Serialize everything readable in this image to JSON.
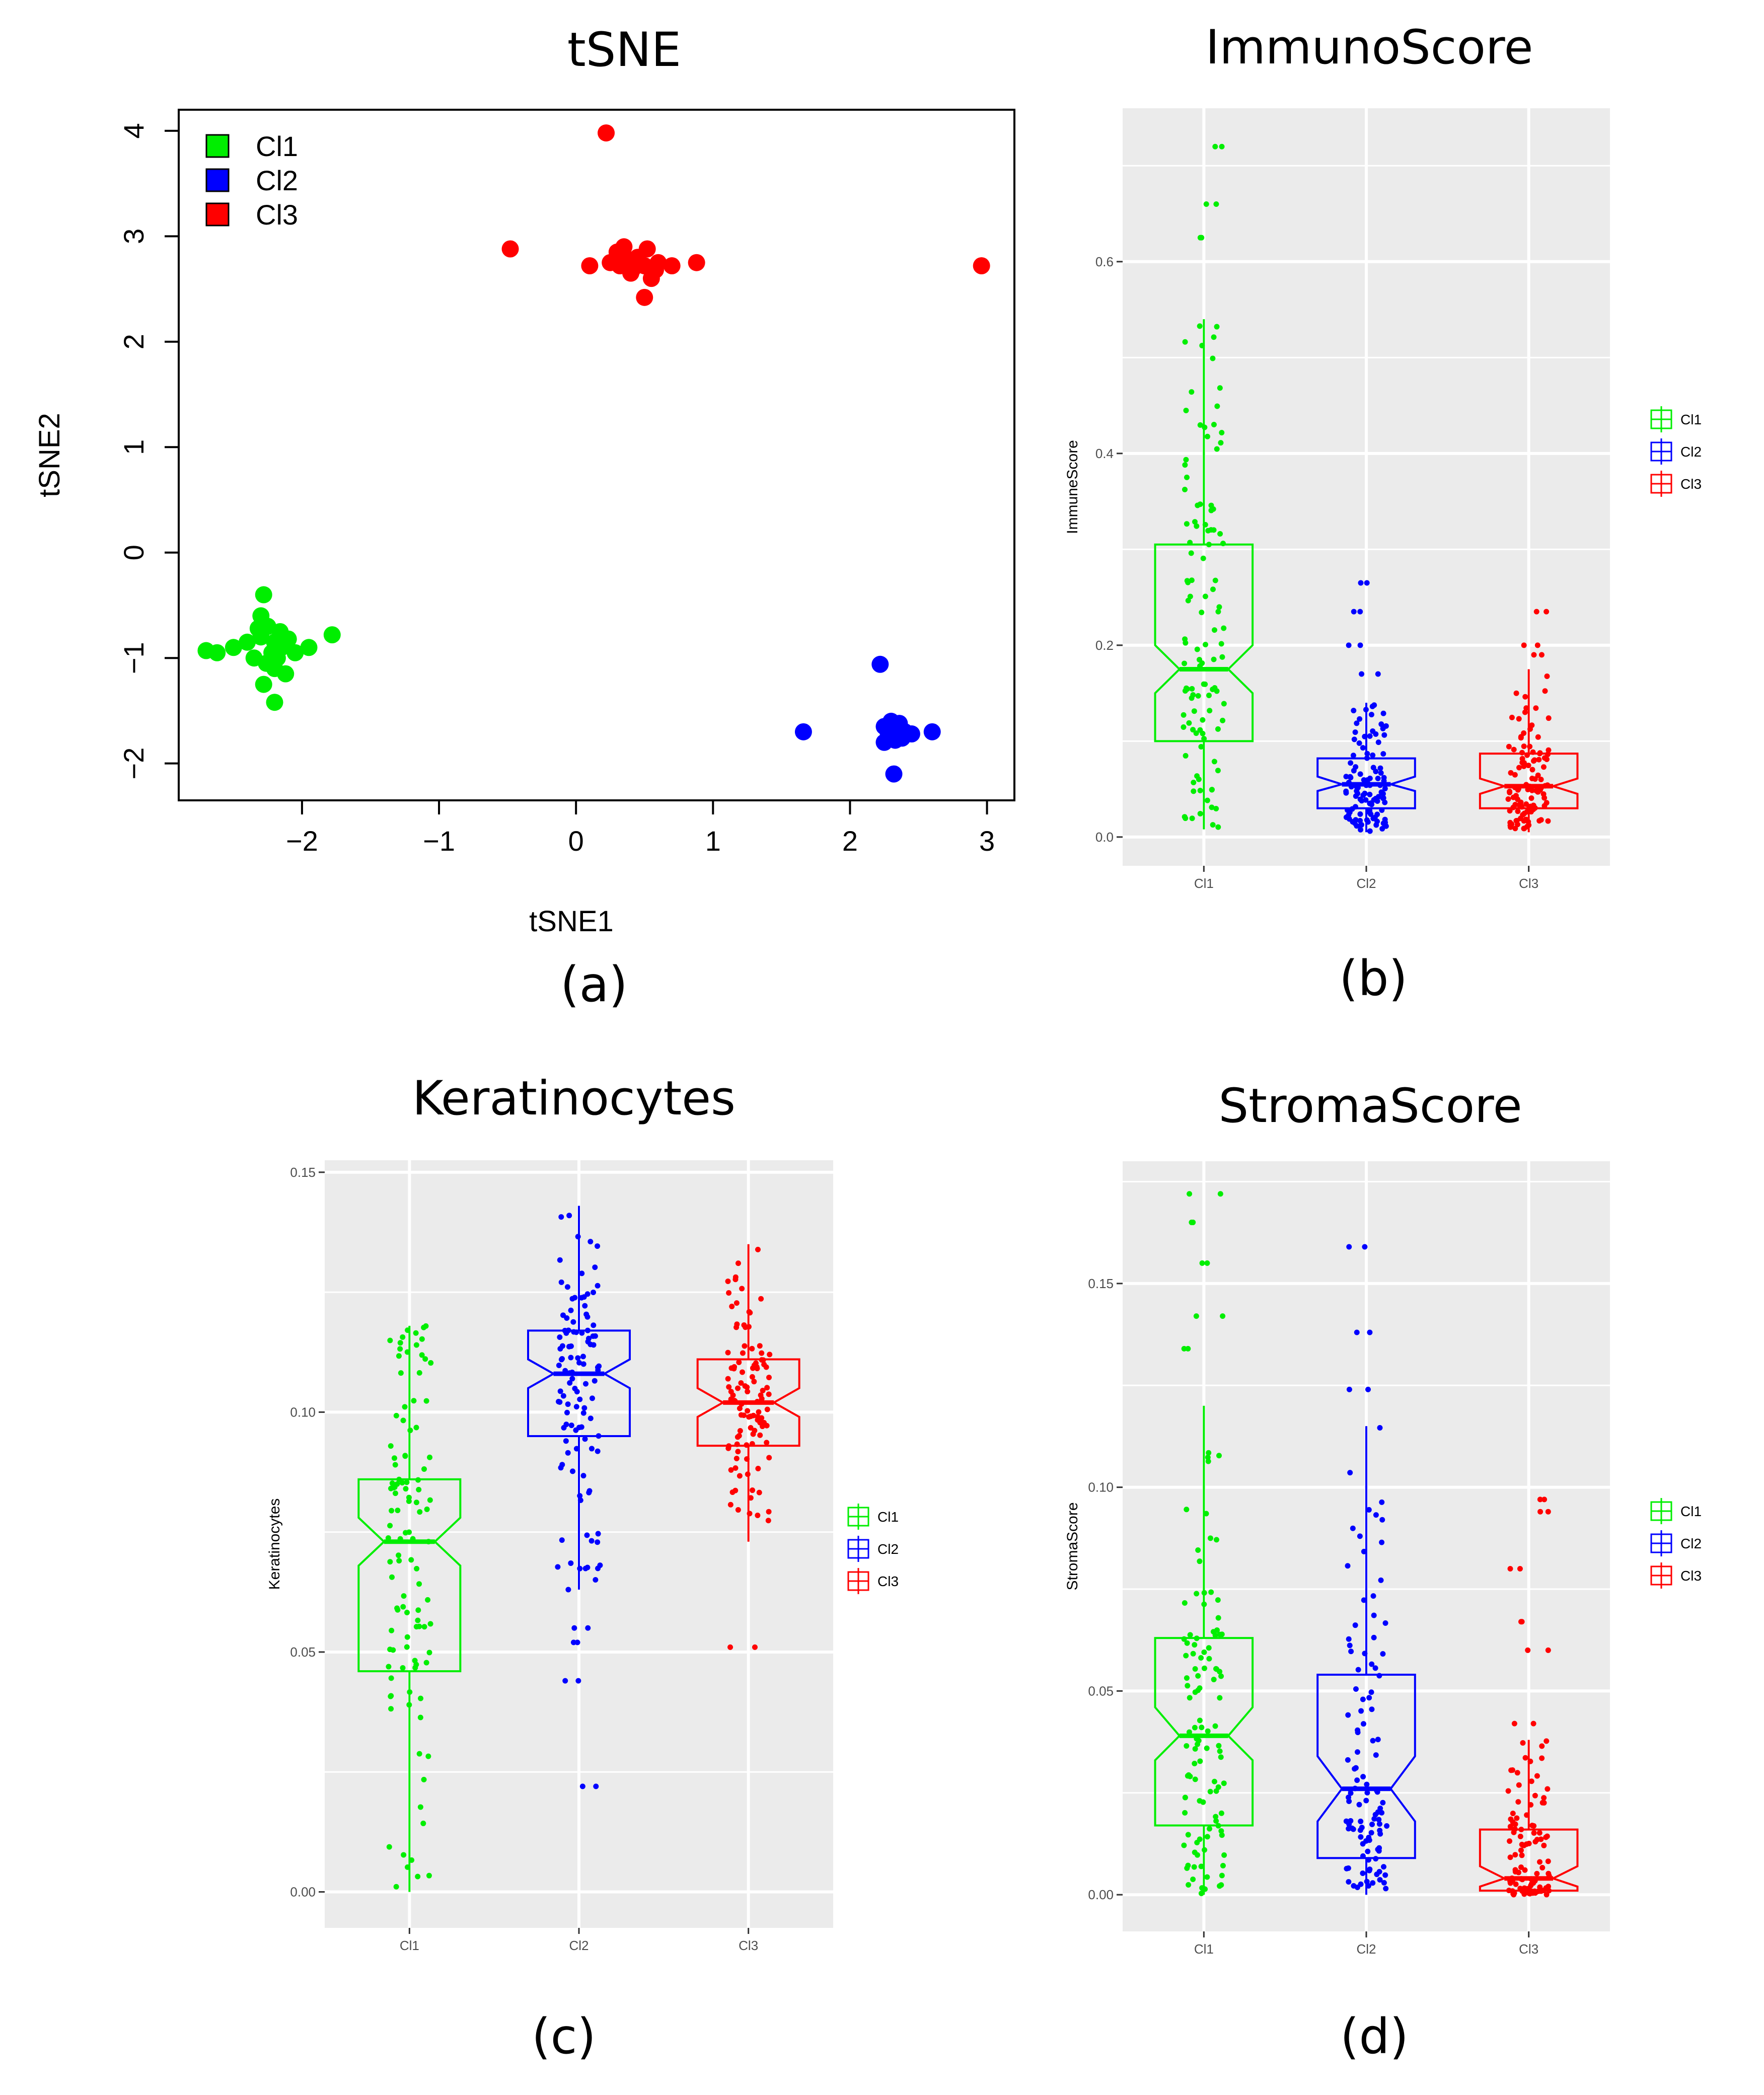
{
  "panels": [
    {
      "title": "tSNE",
      "label": "(a)"
    },
    {
      "title": "ImmunoScore",
      "label": "(b)"
    },
    {
      "title": "Keratinocytes",
      "label": "(c)"
    },
    {
      "title": "StromaScore",
      "label": "(d)"
    }
  ],
  "chart_data": [
    {
      "type": "scatter",
      "title": "tSNE",
      "xlabel": "tSNE1",
      "ylabel": "tSNE2",
      "xlim": [
        -2.9,
        3.2
      ],
      "ylim": [
        -2.35,
        4.2
      ],
      "xticks": [
        -2,
        -1,
        0,
        1,
        2,
        3
      ],
      "yticks": [
        -2,
        -1,
        0,
        1,
        2,
        3,
        4
      ],
      "xtick_labels": [
        "−2",
        "−1",
        "0",
        "1",
        "2",
        "3"
      ],
      "ytick_labels": [
        "−2",
        "−1",
        "0",
        "1",
        "2",
        "3",
        "4"
      ],
      "legend": "top-left",
      "grid": false,
      "series": [
        {
          "name": "Cl1",
          "color": "#00ee00",
          "points": [
            [
              -2.7,
              -0.93
            ],
            [
              -2.62,
              -0.95
            ],
            [
              -2.5,
              -0.9
            ],
            [
              -2.4,
              -0.85
            ],
            [
              -2.35,
              -1.0
            ],
            [
              -2.3,
              -0.8
            ],
            [
              -2.28,
              -0.4
            ],
            [
              -2.3,
              -0.6
            ],
            [
              -2.25,
              -0.7
            ],
            [
              -2.22,
              -0.95
            ],
            [
              -2.2,
              -1.1
            ],
            [
              -2.2,
              -0.85
            ],
            [
              -2.18,
              -1.0
            ],
            [
              -2.15,
              -0.9
            ],
            [
              -2.28,
              -1.25
            ],
            [
              -2.2,
              -1.42
            ],
            [
              -2.12,
              -1.15
            ],
            [
              -2.05,
              -0.95
            ],
            [
              -1.95,
              -0.9
            ],
            [
              -1.78,
              -0.78
            ],
            [
              -2.32,
              -0.72
            ],
            [
              -2.26,
              -1.05
            ],
            [
              -2.1,
              -0.82
            ],
            [
              -2.16,
              -0.75
            ]
          ]
        },
        {
          "name": "Cl2",
          "color": "#0000ff",
          "points": [
            [
              1.66,
              -1.7
            ],
            [
              2.22,
              -1.06
            ],
            [
              2.25,
              -1.65
            ],
            [
              2.25,
              -1.8
            ],
            [
              2.3,
              -1.6
            ],
            [
              2.28,
              -1.72
            ],
            [
              2.32,
              -2.1
            ],
            [
              2.36,
              -1.62
            ],
            [
              2.4,
              -1.7
            ],
            [
              2.33,
              -1.78
            ],
            [
              2.45,
              -1.72
            ],
            [
              2.6,
              -1.7
            ],
            [
              2.38,
              -1.76
            ],
            [
              2.3,
              -1.66
            ]
          ]
        },
        {
          "name": "Cl3",
          "color": "#ff0000",
          "points": [
            [
              0.22,
              3.98
            ],
            [
              -0.48,
              2.88
            ],
            [
              0.1,
              2.72
            ],
            [
              0.25,
              2.75
            ],
            [
              0.3,
              2.85
            ],
            [
              0.32,
              2.72
            ],
            [
              0.35,
              2.9
            ],
            [
              0.38,
              2.78
            ],
            [
              0.4,
              2.65
            ],
            [
              0.45,
              2.8
            ],
            [
              0.5,
              2.72
            ],
            [
              0.52,
              2.88
            ],
            [
              0.55,
              2.6
            ],
            [
              0.6,
              2.75
            ],
            [
              0.7,
              2.72
            ],
            [
              0.5,
              2.42
            ],
            [
              0.88,
              2.75
            ],
            [
              2.96,
              2.72
            ],
            [
              0.42,
              2.7
            ],
            [
              0.58,
              2.68
            ]
          ]
        }
      ]
    },
    {
      "type": "box",
      "title": "ImmunoScore",
      "xlabel": "",
      "ylabel": "ImmuneScore",
      "ylim": [
        -0.03,
        0.76
      ],
      "yticks": [
        0.0,
        0.2,
        0.4,
        0.6
      ],
      "ytick_labels": [
        "0.0",
        "0.2",
        "0.4",
        "0.6"
      ],
      "categories": [
        "Cl1",
        "Cl2",
        "Cl3"
      ],
      "legend": "right",
      "grid": true,
      "series": [
        {
          "name": "Cl1",
          "color": "#00ee00",
          "q1": 0.1,
          "median": 0.175,
          "q3": 0.305,
          "notch_low": 0.15,
          "notch_high": 0.2,
          "whisker_low": 0.008,
          "whisker_high": 0.54,
          "outliers": [
            0.625,
            0.66,
            0.72
          ]
        },
        {
          "name": "Cl2",
          "color": "#0000ff",
          "q1": 0.03,
          "median": 0.055,
          "q3": 0.082,
          "notch_low": 0.048,
          "notch_high": 0.063,
          "whisker_low": 0.005,
          "whisker_high": 0.14,
          "outliers": [
            0.17,
            0.2,
            0.235,
            0.265
          ]
        },
        {
          "name": "Cl3",
          "color": "#ff0000",
          "q1": 0.03,
          "median": 0.053,
          "q3": 0.087,
          "notch_low": 0.045,
          "notch_high": 0.061,
          "whisker_low": 0.005,
          "whisker_high": 0.175,
          "outliers": [
            0.19,
            0.2,
            0.235
          ]
        }
      ]
    },
    {
      "type": "box",
      "title": "Keratinocytes",
      "xlabel": "",
      "ylabel": "Keratinocytes",
      "ylim": [
        -0.0075,
        0.1525
      ],
      "yticks": [
        0.0,
        0.05,
        0.1,
        0.15
      ],
      "ytick_labels": [
        "0.00",
        "0.05",
        "0.10",
        "0.15"
      ],
      "categories": [
        "Cl1",
        "Cl2",
        "Cl3"
      ],
      "legend": "right",
      "grid": true,
      "series": [
        {
          "name": "Cl1",
          "color": "#00ee00",
          "q1": 0.046,
          "median": 0.073,
          "q3": 0.086,
          "notch_low": 0.068,
          "notch_high": 0.078,
          "whisker_low": 0.0,
          "whisker_high": 0.118,
          "outliers": []
        },
        {
          "name": "Cl2",
          "color": "#0000ff",
          "q1": 0.095,
          "median": 0.108,
          "q3": 0.117,
          "notch_low": 0.105,
          "notch_high": 0.111,
          "whisker_low": 0.063,
          "whisker_high": 0.143,
          "outliers": [
            0.022,
            0.044,
            0.052,
            0.055
          ]
        },
        {
          "name": "Cl3",
          "color": "#ff0000",
          "q1": 0.093,
          "median": 0.102,
          "q3": 0.111,
          "notch_low": 0.099,
          "notch_high": 0.105,
          "whisker_low": 0.073,
          "whisker_high": 0.135,
          "outliers": [
            0.051
          ]
        }
      ]
    },
    {
      "type": "box",
      "title": "StromaScore",
      "xlabel": "",
      "ylabel": "StromaScore",
      "ylim": [
        -0.009,
        0.18
      ],
      "yticks": [
        0.0,
        0.05,
        0.1,
        0.15
      ],
      "ytick_labels": [
        "0.00",
        "0.05",
        "0.10",
        "0.15"
      ],
      "categories": [
        "Cl1",
        "Cl2",
        "Cl3"
      ],
      "legend": "right",
      "grid": true,
      "series": [
        {
          "name": "Cl1",
          "color": "#00ee00",
          "q1": 0.017,
          "median": 0.039,
          "q3": 0.063,
          "notch_low": 0.033,
          "notch_high": 0.046,
          "whisker_low": 0.0,
          "whisker_high": 0.12,
          "outliers": [
            0.134,
            0.142,
            0.155,
            0.165,
            0.172
          ]
        },
        {
          "name": "Cl2",
          "color": "#0000ff",
          "q1": 0.009,
          "median": 0.026,
          "q3": 0.054,
          "notch_low": 0.018,
          "notch_high": 0.034,
          "whisker_low": 0.0,
          "whisker_high": 0.115,
          "outliers": [
            0.124,
            0.138,
            0.159
          ]
        },
        {
          "name": "Cl3",
          "color": "#ff0000",
          "q1": 0.001,
          "median": 0.004,
          "q3": 0.016,
          "notch_low": 0.002,
          "notch_high": 0.007,
          "whisker_low": 0.0,
          "whisker_high": 0.038,
          "outliers": [
            0.042,
            0.06,
            0.067,
            0.08,
            0.094,
            0.097
          ]
        }
      ]
    }
  ]
}
